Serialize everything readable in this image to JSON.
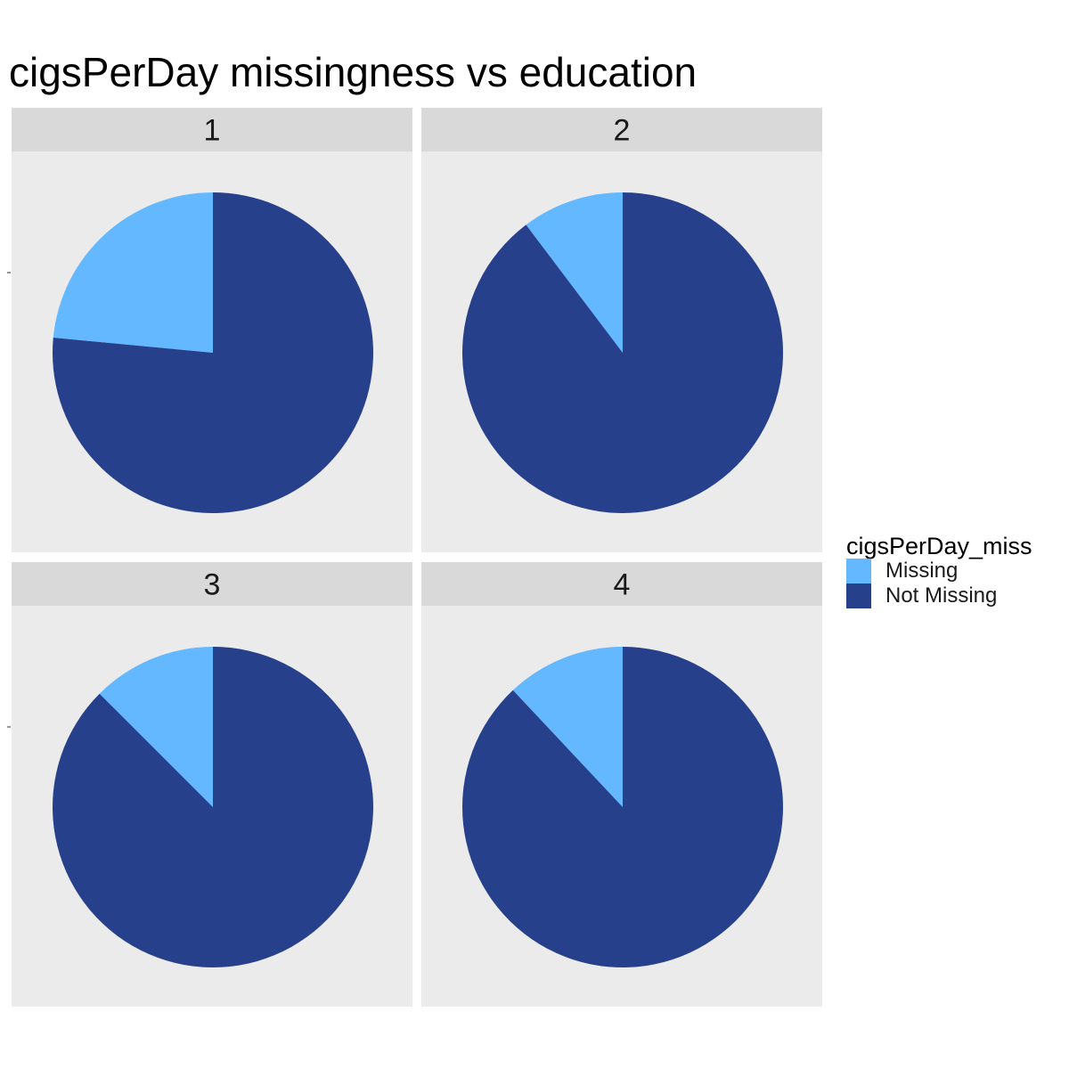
{
  "title": "cigsPerDay missingness vs education",
  "legend": {
    "title": "cigsPerDay_miss",
    "items": [
      {
        "label": "Missing",
        "color": "#63B8FF"
      },
      {
        "label": "Not Missing",
        "color": "#27408B"
      }
    ]
  },
  "chart_data": {
    "type": "pie",
    "facet_variable": "education",
    "fill_variable": "cigsPerDay_miss",
    "categories": [
      "Missing",
      "Not Missing"
    ],
    "colors": {
      "Missing": "#63B8FF",
      "Not Missing": "#27408B"
    },
    "facets": [
      {
        "label": "1",
        "values": {
          "Missing": 0.235,
          "Not Missing": 0.765
        }
      },
      {
        "label": "2",
        "values": {
          "Missing": 0.103,
          "Not Missing": 0.897
        }
      },
      {
        "label": "3",
        "values": {
          "Missing": 0.125,
          "Not Missing": 0.875
        }
      },
      {
        "label": "4",
        "values": {
          "Missing": 0.12,
          "Not Missing": 0.88
        }
      }
    ],
    "theme": {
      "panel_background": "#EBEBEB",
      "strip_background": "#D9D9D9",
      "strip_text_color": "#1A1A1A"
    },
    "grid": false,
    "legend_position": "right"
  }
}
